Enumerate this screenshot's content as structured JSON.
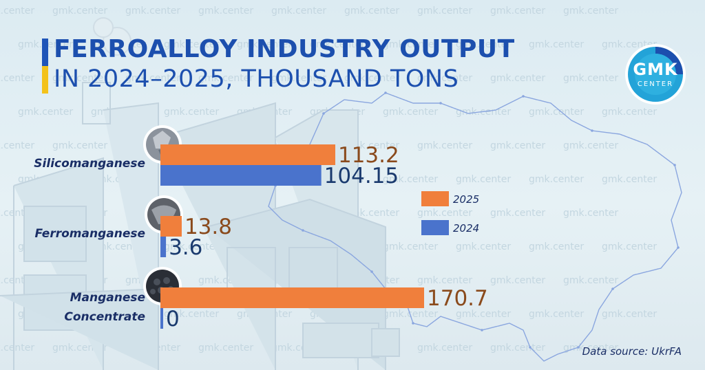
{
  "header": {
    "title_line1": "FERROALLOY INDUSTRY OUTPUT",
    "title_line2": "IN 2024–2025, THOUSAND TONS"
  },
  "logo": {
    "main": "GMK",
    "sub": "CENTER"
  },
  "watermark": {
    "text": "gmk.center"
  },
  "source": "Data source: UkrFA",
  "colors": {
    "s2025": "#f07f3c",
    "s2024": "#4a73cc",
    "val2025": "#8a4a1c",
    "val2024": "#1a3a6e",
    "title": "#1c4fae"
  },
  "chart_data": {
    "type": "bar",
    "orientation": "horizontal",
    "categories": [
      "Silicomanganese",
      "Ferromanganese",
      "Manganese Concentrate"
    ],
    "series": [
      {
        "name": "2025",
        "values": [
          113.2,
          13.8,
          170.7
        ],
        "labels": [
          "113.2",
          "13.8",
          "170.7"
        ]
      },
      {
        "name": "2024",
        "values": [
          104.15,
          3.6,
          0
        ],
        "labels": [
          "104.15",
          "3.6",
          "0"
        ]
      }
    ],
    "xlim": [
      0,
      170.7
    ],
    "grid": false,
    "legend_position": "center-right"
  }
}
